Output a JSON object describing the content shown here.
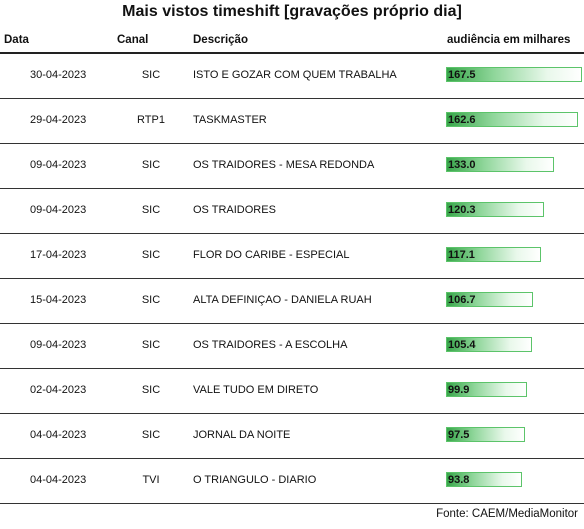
{
  "title": "Mais vistos timeshift [gravações próprio dia]",
  "columns": {
    "date": "Data",
    "channel": "Canal",
    "description": "Descrição",
    "audience": "audiência em milhares"
  },
  "rows": [
    {
      "date": "30-04-2023",
      "channel": "SIC",
      "description": "ISTO E GOZAR COM QUEM TRABALHA",
      "audience": "167.5",
      "value": 167.5
    },
    {
      "date": "29-04-2023",
      "channel": "RTP1",
      "description": "TASKMASTER",
      "audience": "162.6",
      "value": 162.6
    },
    {
      "date": "09-04-2023",
      "channel": "SIC",
      "description": "OS TRAIDORES - MESA REDONDA",
      "audience": "133.0",
      "value": 133.0
    },
    {
      "date": "09-04-2023",
      "channel": "SIC",
      "description": "OS TRAIDORES",
      "audience": "120.3",
      "value": 120.3
    },
    {
      "date": "17-04-2023",
      "channel": "SIC",
      "description": "FLOR DO CARIBE - ESPECIAL",
      "audience": "117.1",
      "value": 117.1
    },
    {
      "date": "15-04-2023",
      "channel": "SIC",
      "description": "ALTA DEFINIÇAO - DANIELA RUAH",
      "audience": "106.7",
      "value": 106.7
    },
    {
      "date": "09-04-2023",
      "channel": "SIC",
      "description": "OS TRAIDORES - A ESCOLHA",
      "audience": "105.4",
      "value": 105.4
    },
    {
      "date": "02-04-2023",
      "channel": "SIC",
      "description": "VALE TUDO EM DIRETO",
      "audience": "99.9",
      "value": 99.9
    },
    {
      "date": "04-04-2023",
      "channel": "SIC",
      "description": "JORNAL DA NOITE",
      "audience": "97.5",
      "value": 97.5
    },
    {
      "date": "04-04-2023",
      "channel": "TVI",
      "description": "O TRIANGULO - DIARIO",
      "audience": "93.8",
      "value": 93.8
    }
  ],
  "source": "Fonte: CAEM/MediaMonitor",
  "bar_color": "#38a64a"
}
